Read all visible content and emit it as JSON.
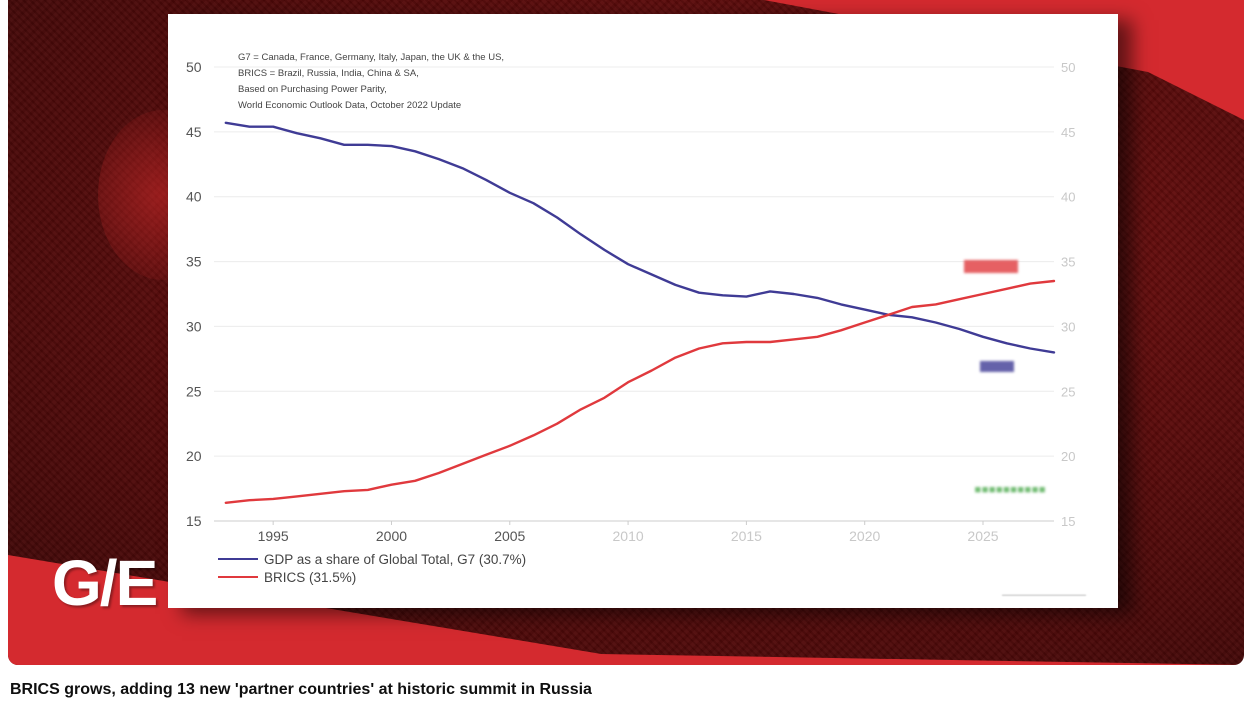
{
  "logo_text": "G/E",
  "caption": "BRICS grows, adding 13 new 'partner countries' at historic summit in Russia",
  "chart_data": {
    "type": "line",
    "notes": [
      "G7 = Canada, France, Germany, Italy, Japan, the UK & the US,",
      "BRICS = Brazil, Russia, India, China & SA,",
      "Based on Purchasing Power Parity,",
      "World Economic Outlook Data, October 2022 Update"
    ],
    "xlim": [
      1992.5,
      2028
    ],
    "ylim": [
      15,
      50
    ],
    "x_ticks": [
      1995,
      2000,
      2005,
      2010,
      2015,
      2020,
      2025
    ],
    "y_ticks": [
      15,
      20,
      25,
      30,
      35,
      40,
      45,
      50
    ],
    "grid": "horizontal",
    "legend_position": "bottom-left",
    "colors": {
      "g7": "#3f3b95",
      "brics": "#e0393d"
    },
    "series": [
      {
        "id": "g7",
        "name": "GDP as a share of Global Total, G7 (30.7%)",
        "color": "#3f3b95",
        "x": [
          1993,
          1994,
          1995,
          1996,
          1997,
          1998,
          1999,
          2000,
          2001,
          2002,
          2003,
          2004,
          2005,
          2006,
          2007,
          2008,
          2009,
          2010,
          2011,
          2012,
          2013,
          2014,
          2015,
          2016,
          2017,
          2018,
          2019,
          2020,
          2021,
          2022,
          2023,
          2024,
          2025,
          2026,
          2027,
          2028
        ],
        "values": [
          45.7,
          45.4,
          45.4,
          44.9,
          44.5,
          44.0,
          44.0,
          43.9,
          43.5,
          42.9,
          42.2,
          41.3,
          40.3,
          39.5,
          38.4,
          37.1,
          35.9,
          34.8,
          34.0,
          33.2,
          32.6,
          32.4,
          32.3,
          32.7,
          32.5,
          32.2,
          31.7,
          31.3,
          30.9,
          30.7,
          30.3,
          29.8,
          29.2,
          28.7,
          28.3,
          28.0
        ]
      },
      {
        "id": "brics",
        "name": "BRICS (31.5%)",
        "color": "#e0393d",
        "x": [
          1993,
          1994,
          1995,
          1996,
          1997,
          1998,
          1999,
          2000,
          2001,
          2002,
          2003,
          2004,
          2005,
          2006,
          2007,
          2008,
          2009,
          2010,
          2011,
          2012,
          2013,
          2014,
          2015,
          2016,
          2017,
          2018,
          2019,
          2020,
          2021,
          2022,
          2023,
          2024,
          2025,
          2026,
          2027,
          2028
        ],
        "values": [
          16.4,
          16.6,
          16.7,
          16.9,
          17.1,
          17.3,
          17.4,
          17.8,
          18.1,
          18.7,
          19.4,
          20.1,
          20.8,
          21.6,
          22.5,
          23.6,
          24.5,
          25.7,
          26.6,
          27.6,
          28.3,
          28.7,
          28.8,
          28.8,
          29.0,
          29.2,
          29.7,
          30.3,
          30.9,
          31.5,
          31.7,
          32.1,
          32.5,
          32.9,
          33.3,
          33.5
        ]
      }
    ]
  }
}
